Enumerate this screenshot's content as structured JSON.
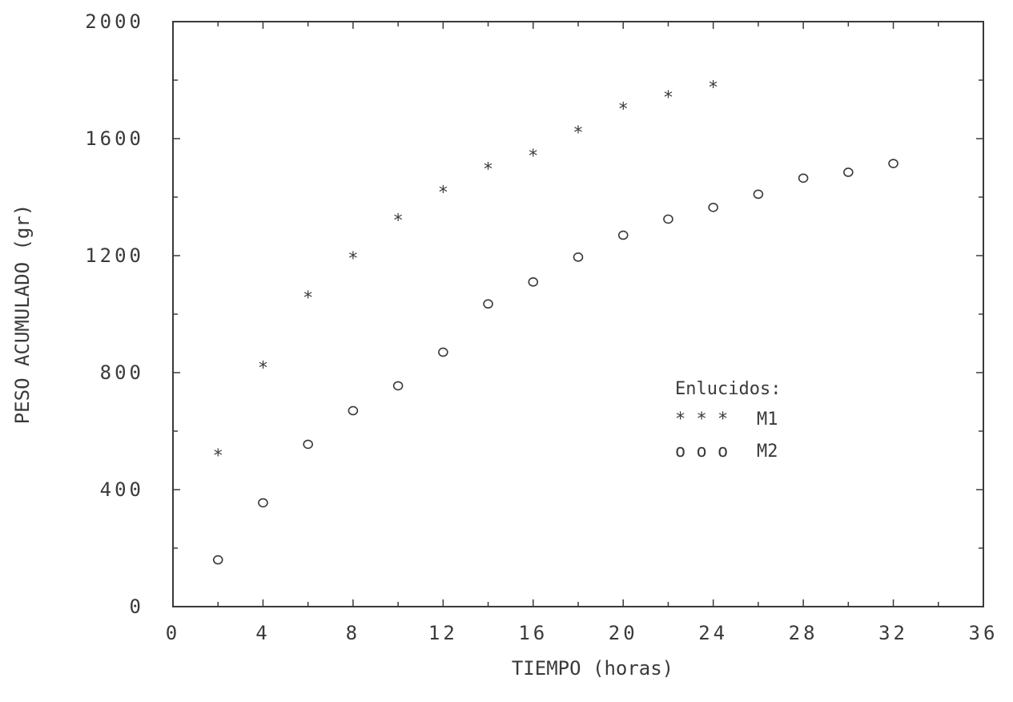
{
  "chart_data": {
    "type": "scatter",
    "title": "",
    "xlabel": "TIEMPO (horas)",
    "ylabel": "PESO ACUMULADO (gr)",
    "xlim": [
      0,
      36
    ],
    "ylim": [
      0,
      2000
    ],
    "x_ticks": [
      "0",
      "4",
      "8",
      "12",
      "16",
      "20",
      "24",
      "28",
      "32",
      "36"
    ],
    "y_ticks": [
      "0",
      "400",
      "800",
      "1200",
      "1600",
      "2000"
    ],
    "grid": false,
    "legend": {
      "title": "Enlucidos:",
      "placement": "center-right",
      "entries": [
        {
          "symbol": "* * *",
          "label": "M1"
        },
        {
          "symbol": "o o o",
          "label": "M2"
        }
      ]
    },
    "series": [
      {
        "name": "M1",
        "marker": "star",
        "x": [
          2,
          4,
          6,
          8,
          10,
          12,
          14,
          16,
          18,
          20,
          22,
          24
        ],
        "y": [
          520,
          820,
          1060,
          1195,
          1325,
          1420,
          1500,
          1545,
          1625,
          1705,
          1745,
          1780
        ]
      },
      {
        "name": "M2",
        "marker": "circle",
        "x": [
          2,
          4,
          6,
          8,
          10,
          12,
          14,
          16,
          18,
          20,
          22,
          24,
          26,
          28,
          30,
          32
        ],
        "y": [
          160,
          355,
          555,
          670,
          755,
          870,
          1035,
          1110,
          1195,
          1270,
          1325,
          1365,
          1410,
          1465,
          1485,
          1515
        ]
      }
    ]
  }
}
